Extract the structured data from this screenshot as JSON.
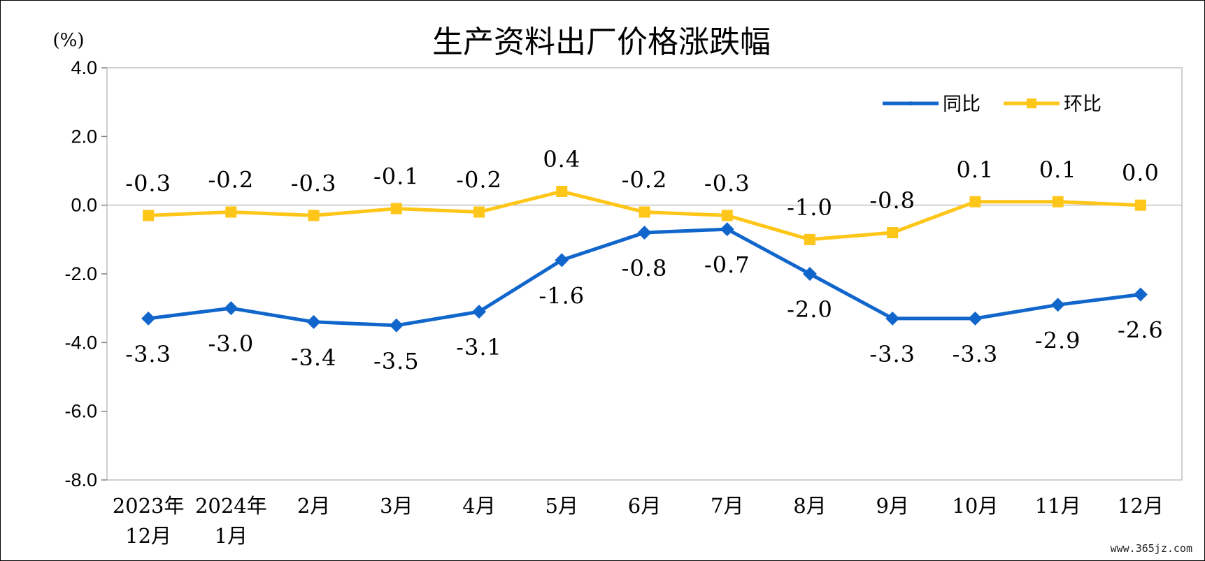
{
  "chart_data": {
    "type": "line",
    "title": "生产资料出厂价格涨跌幅",
    "unit": "(%)",
    "ylim": [
      -8.0,
      4.0
    ],
    "yticks": [
      "4.0",
      "2.0",
      "0.0",
      "-2.0",
      "-4.0",
      "-6.0",
      "-8.0"
    ],
    "ytick_values": [
      4,
      2,
      0,
      -2,
      -4,
      -6,
      -8
    ],
    "categories": [
      [
        "2023年",
        "12月"
      ],
      [
        "2024年",
        "1月"
      ],
      [
        "2月"
      ],
      [
        "3月"
      ],
      [
        "4月"
      ],
      [
        "5月"
      ],
      [
        "6月"
      ],
      [
        "7月"
      ],
      [
        "8月"
      ],
      [
        "9月"
      ],
      [
        "10月"
      ],
      [
        "11月"
      ],
      [
        "12月"
      ]
    ],
    "legend": {
      "placement": "top-right"
    },
    "grid": false,
    "series": [
      {
        "name": "同比",
        "color": "#1166CC",
        "marker": "diamond",
        "values": [
          -3.3,
          -3.0,
          -3.4,
          -3.5,
          -3.1,
          -1.6,
          -0.8,
          -0.7,
          -2.0,
          -3.3,
          -3.3,
          -2.9,
          -2.6
        ],
        "labels": [
          "-3.3",
          "-3.0",
          "-3.4",
          "-3.5",
          "-3.1",
          "-1.6",
          "-0.8",
          "-0.7",
          "-2.0",
          "-3.3",
          "-3.3",
          "-2.9",
          "-2.6"
        ]
      },
      {
        "name": "环比",
        "color": "#FFC61A",
        "marker": "square",
        "values": [
          -0.3,
          -0.2,
          -0.3,
          -0.1,
          -0.2,
          0.4,
          -0.2,
          -0.3,
          -1.0,
          -0.8,
          0.1,
          0.1,
          0.0
        ],
        "labels": [
          "-0.3",
          "-0.2",
          "-0.3",
          "-0.1",
          "-0.2",
          "0.4",
          "-0.2",
          "-0.3",
          "-1.0",
          "-0.8",
          "0.1",
          "0.1",
          "0.0"
        ]
      }
    ]
  },
  "watermark": "www.365jz.com"
}
